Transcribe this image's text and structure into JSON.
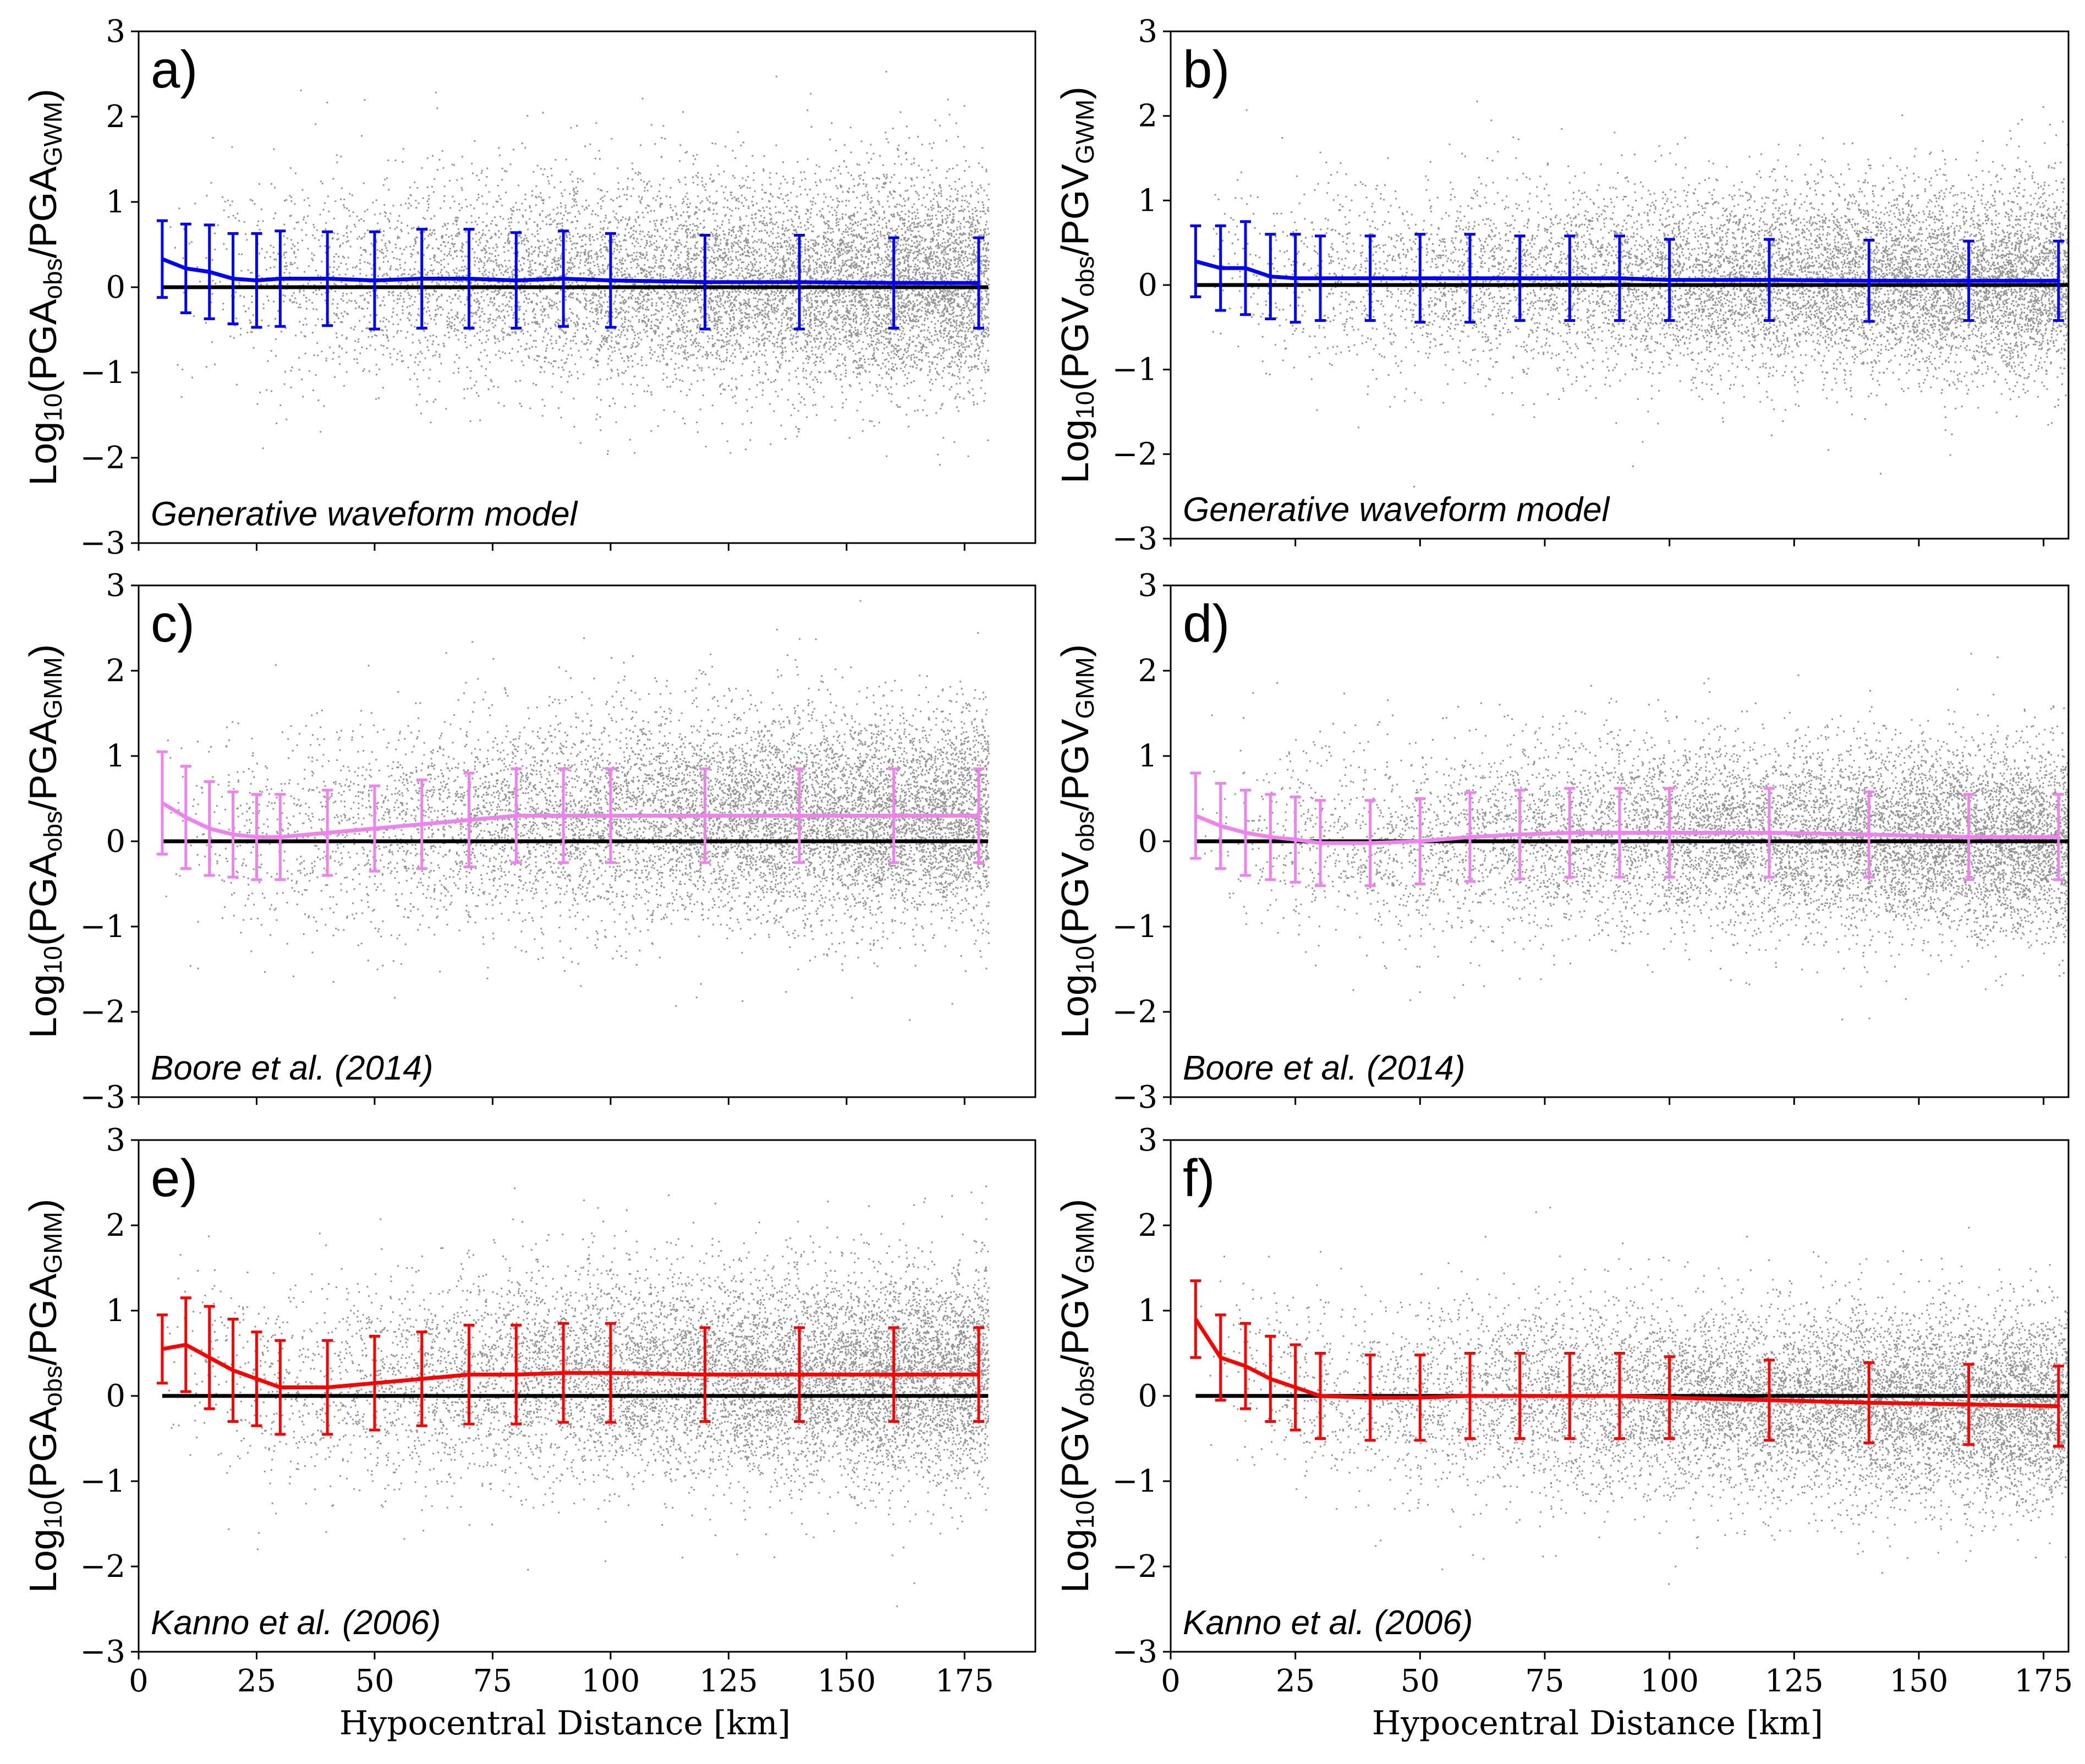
{
  "figure": {
    "x_axis_label": "Hypocentral Distance [km]",
    "x_ticks": [
      "0",
      "25",
      "50",
      "75",
      "100",
      "125",
      "150",
      "175"
    ],
    "y_ticks": [
      "−3",
      "−2",
      "−1",
      "0",
      "1",
      "2",
      "3"
    ]
  },
  "chart_data": [
    {
      "type": "scatter",
      "panel": "a)",
      "model_label": "Generative waveform model",
      "ylabel": {
        "prefix": "Log",
        "base": "10",
        "num": "PGA",
        "num_sub": "obs",
        "den": "PGA",
        "den_sub": "GWM"
      },
      "xlim": [
        0,
        190
      ],
      "ylim": [
        -3,
        3
      ],
      "reference_line_y": 0,
      "scatter": {
        "color": "#808080",
        "x_range": [
          5,
          180
        ],
        "spread": 0.6
      },
      "series": [
        {
          "name": "binned mean residual",
          "color": "#0000ff",
          "x": [
            5,
            10,
            15,
            20,
            25,
            30,
            40,
            50,
            60,
            70,
            80,
            90,
            100,
            120,
            140,
            160,
            178
          ],
          "mean": [
            0.33,
            0.22,
            0.18,
            0.1,
            0.08,
            0.1,
            0.1,
            0.08,
            0.1,
            0.1,
            0.08,
            0.1,
            0.08,
            0.06,
            0.06,
            0.05,
            0.05
          ],
          "std": [
            0.45,
            0.52,
            0.55,
            0.53,
            0.55,
            0.56,
            0.55,
            0.57,
            0.58,
            0.58,
            0.56,
            0.56,
            0.55,
            0.55,
            0.55,
            0.53,
            0.53
          ]
        }
      ]
    },
    {
      "type": "scatter",
      "panel": "b)",
      "model_label": "Generative waveform model",
      "ylabel": {
        "prefix": "Log",
        "base": "10",
        "num": "PGV",
        "num_sub": "obs",
        "den": "PGV",
        "den_sub": "GWM"
      },
      "xlim": [
        0,
        180
      ],
      "ylim": [
        -3,
        3
      ],
      "reference_line_y": 0,
      "scatter": {
        "color": "#808080",
        "x_range": [
          5,
          180
        ],
        "spread": 0.55
      },
      "series": [
        {
          "name": "binned mean residual",
          "color": "#0000ff",
          "x": [
            5,
            10,
            15,
            20,
            25,
            30,
            40,
            50,
            60,
            70,
            80,
            90,
            100,
            120,
            140,
            160,
            178
          ],
          "mean": [
            0.28,
            0.2,
            0.2,
            0.1,
            0.08,
            0.08,
            0.08,
            0.08,
            0.08,
            0.08,
            0.08,
            0.08,
            0.06,
            0.06,
            0.05,
            0.05,
            0.05
          ],
          "std": [
            0.42,
            0.5,
            0.55,
            0.5,
            0.52,
            0.5,
            0.5,
            0.52,
            0.52,
            0.5,
            0.5,
            0.5,
            0.48,
            0.48,
            0.48,
            0.47,
            0.47
          ]
        }
      ]
    },
    {
      "type": "scatter",
      "panel": "c)",
      "model_label": "Boore et al. (2014)",
      "ylabel": {
        "prefix": "Log",
        "base": "10",
        "num": "PGA",
        "num_sub": "obs",
        "den": "PGA",
        "den_sub": "GMM"
      },
      "xlim": [
        0,
        190
      ],
      "ylim": [
        -3,
        3
      ],
      "reference_line_y": 0,
      "scatter": {
        "color": "#808080",
        "x_range": [
          5,
          180
        ],
        "spread": 0.6
      },
      "series": [
        {
          "name": "binned mean residual",
          "color": "#ee82ee",
          "x": [
            5,
            10,
            15,
            20,
            25,
            30,
            40,
            50,
            60,
            70,
            80,
            90,
            100,
            120,
            140,
            160,
            178
          ],
          "mean": [
            0.45,
            0.28,
            0.15,
            0.08,
            0.05,
            0.05,
            0.1,
            0.15,
            0.2,
            0.25,
            0.3,
            0.3,
            0.3,
            0.3,
            0.3,
            0.3,
            0.3
          ],
          "std": [
            0.6,
            0.6,
            0.55,
            0.5,
            0.5,
            0.5,
            0.5,
            0.5,
            0.52,
            0.55,
            0.55,
            0.55,
            0.55,
            0.55,
            0.55,
            0.55,
            0.55
          ]
        }
      ]
    },
    {
      "type": "scatter",
      "panel": "d)",
      "model_label": "Boore et al. (2014)",
      "ylabel": {
        "prefix": "Log",
        "base": "10",
        "num": "PGV",
        "num_sub": "obs",
        "den": "PGV",
        "den_sub": "GMM"
      },
      "xlim": [
        0,
        180
      ],
      "ylim": [
        -3,
        3
      ],
      "reference_line_y": 0,
      "scatter": {
        "color": "#808080",
        "x_range": [
          5,
          180
        ],
        "spread": 0.55
      },
      "series": [
        {
          "name": "binned mean residual",
          "color": "#ee82ee",
          "x": [
            5,
            10,
            15,
            20,
            25,
            30,
            40,
            50,
            60,
            70,
            80,
            90,
            100,
            120,
            140,
            160,
            178
          ],
          "mean": [
            0.3,
            0.18,
            0.1,
            0.05,
            0.02,
            -0.02,
            -0.02,
            0.0,
            0.05,
            0.08,
            0.1,
            0.1,
            0.1,
            0.1,
            0.08,
            0.05,
            0.05
          ],
          "std": [
            0.5,
            0.5,
            0.5,
            0.5,
            0.5,
            0.5,
            0.5,
            0.5,
            0.52,
            0.52,
            0.52,
            0.52,
            0.52,
            0.52,
            0.5,
            0.5,
            0.5
          ]
        }
      ]
    },
    {
      "type": "scatter",
      "panel": "e)",
      "model_label": "Kanno et al. (2006)",
      "ylabel": {
        "prefix": "Log",
        "base": "10",
        "num": "PGA",
        "num_sub": "obs",
        "den": "PGA",
        "den_sub": "GMM"
      },
      "xlim": [
        0,
        190
      ],
      "ylim": [
        -3,
        3
      ],
      "reference_line_y": 0,
      "scatter": {
        "color": "#808080",
        "x_range": [
          5,
          180
        ],
        "spread": 0.6
      },
      "series": [
        {
          "name": "binned mean residual",
          "color": "#ff0000",
          "x": [
            5,
            10,
            15,
            20,
            25,
            30,
            40,
            50,
            60,
            70,
            80,
            90,
            100,
            120,
            140,
            160,
            178
          ],
          "mean": [
            0.55,
            0.6,
            0.45,
            0.3,
            0.2,
            0.1,
            0.1,
            0.15,
            0.2,
            0.25,
            0.25,
            0.27,
            0.27,
            0.25,
            0.25,
            0.25,
            0.25
          ],
          "std": [
            0.4,
            0.55,
            0.6,
            0.6,
            0.55,
            0.55,
            0.55,
            0.55,
            0.55,
            0.58,
            0.58,
            0.58,
            0.58,
            0.55,
            0.55,
            0.55,
            0.55
          ]
        }
      ]
    },
    {
      "type": "scatter",
      "panel": "f)",
      "model_label": "Kanno et al. (2006)",
      "ylabel": {
        "prefix": "Log",
        "base": "10",
        "num": "PGV",
        "num_sub": "obs",
        "den": "PGV",
        "den_sub": "GMM"
      },
      "xlim": [
        0,
        180
      ],
      "ylim": [
        -3,
        3
      ],
      "reference_line_y": 0,
      "scatter": {
        "color": "#808080",
        "x_range": [
          5,
          180
        ],
        "spread": 0.55
      },
      "series": [
        {
          "name": "binned mean residual",
          "color": "#ff0000",
          "x": [
            5,
            10,
            15,
            20,
            25,
            30,
            40,
            50,
            60,
            70,
            80,
            90,
            100,
            120,
            140,
            160,
            178
          ],
          "mean": [
            0.9,
            0.45,
            0.35,
            0.2,
            0.1,
            0.0,
            -0.02,
            -0.02,
            0.0,
            0.0,
            0.0,
            0.0,
            -0.02,
            -0.05,
            -0.08,
            -0.1,
            -0.12
          ],
          "std": [
            0.45,
            0.5,
            0.5,
            0.5,
            0.5,
            0.5,
            0.5,
            0.5,
            0.5,
            0.5,
            0.5,
            0.5,
            0.48,
            0.47,
            0.47,
            0.47,
            0.47
          ]
        }
      ]
    }
  ]
}
